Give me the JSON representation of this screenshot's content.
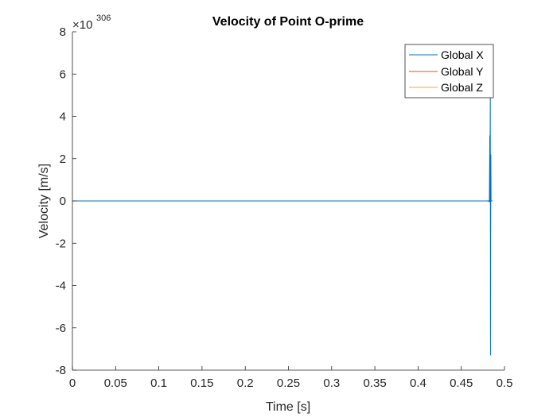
{
  "chart_data": {
    "type": "line",
    "title": "Velocity of Point O-prime",
    "xlabel": "Time [s]",
    "ylabel": "Velocity [m/s]",
    "y_exponent": {
      "prefix": "×10",
      "power": "306"
    },
    "xlim": [
      0,
      0.5
    ],
    "ylim": [
      -8,
      8
    ],
    "x_ticks": [
      0,
      0.05,
      0.1,
      0.15,
      0.2,
      0.25,
      0.3,
      0.35,
      0.4,
      0.45,
      0.5
    ],
    "x_tick_labels": [
      "0",
      "0.05",
      "0.1",
      "0.15",
      "0.2",
      "0.25",
      "0.3",
      "0.35",
      "0.4",
      "0.45",
      "0.5"
    ],
    "y_ticks": [
      -8,
      -6,
      -4,
      -2,
      0,
      2,
      4,
      6,
      8
    ],
    "y_tick_labels": [
      "-8",
      "-6",
      "-4",
      "-2",
      "0",
      "2",
      "4",
      "6",
      "8"
    ],
    "grid": false,
    "legend_position": "top-right",
    "series": [
      {
        "name": "Global X",
        "color": "#0072BD",
        "points": [
          [
            0,
            0
          ],
          [
            0.479,
            0
          ],
          [
            0.482,
            0.01
          ],
          [
            0.4825,
            -0.05
          ],
          [
            0.483,
            3.1
          ],
          [
            0.4832,
            0
          ],
          [
            0.4836,
            5.2
          ],
          [
            0.4838,
            -7.3
          ],
          [
            0.4842,
            2.2
          ],
          [
            0.4845,
            0
          ],
          [
            0.486,
            0
          ]
        ]
      },
      {
        "name": "Global Y",
        "color": "#D95319",
        "points": [
          [
            0,
            0
          ],
          [
            0.481,
            0
          ],
          [
            0.4825,
            -0.04
          ],
          [
            0.4835,
            0.03
          ],
          [
            0.4845,
            0
          ],
          [
            0.486,
            0
          ]
        ]
      },
      {
        "name": "Global Z",
        "color": "#EDB120",
        "points": [
          [
            0,
            0
          ],
          [
            0.486,
            0
          ]
        ]
      }
    ]
  }
}
